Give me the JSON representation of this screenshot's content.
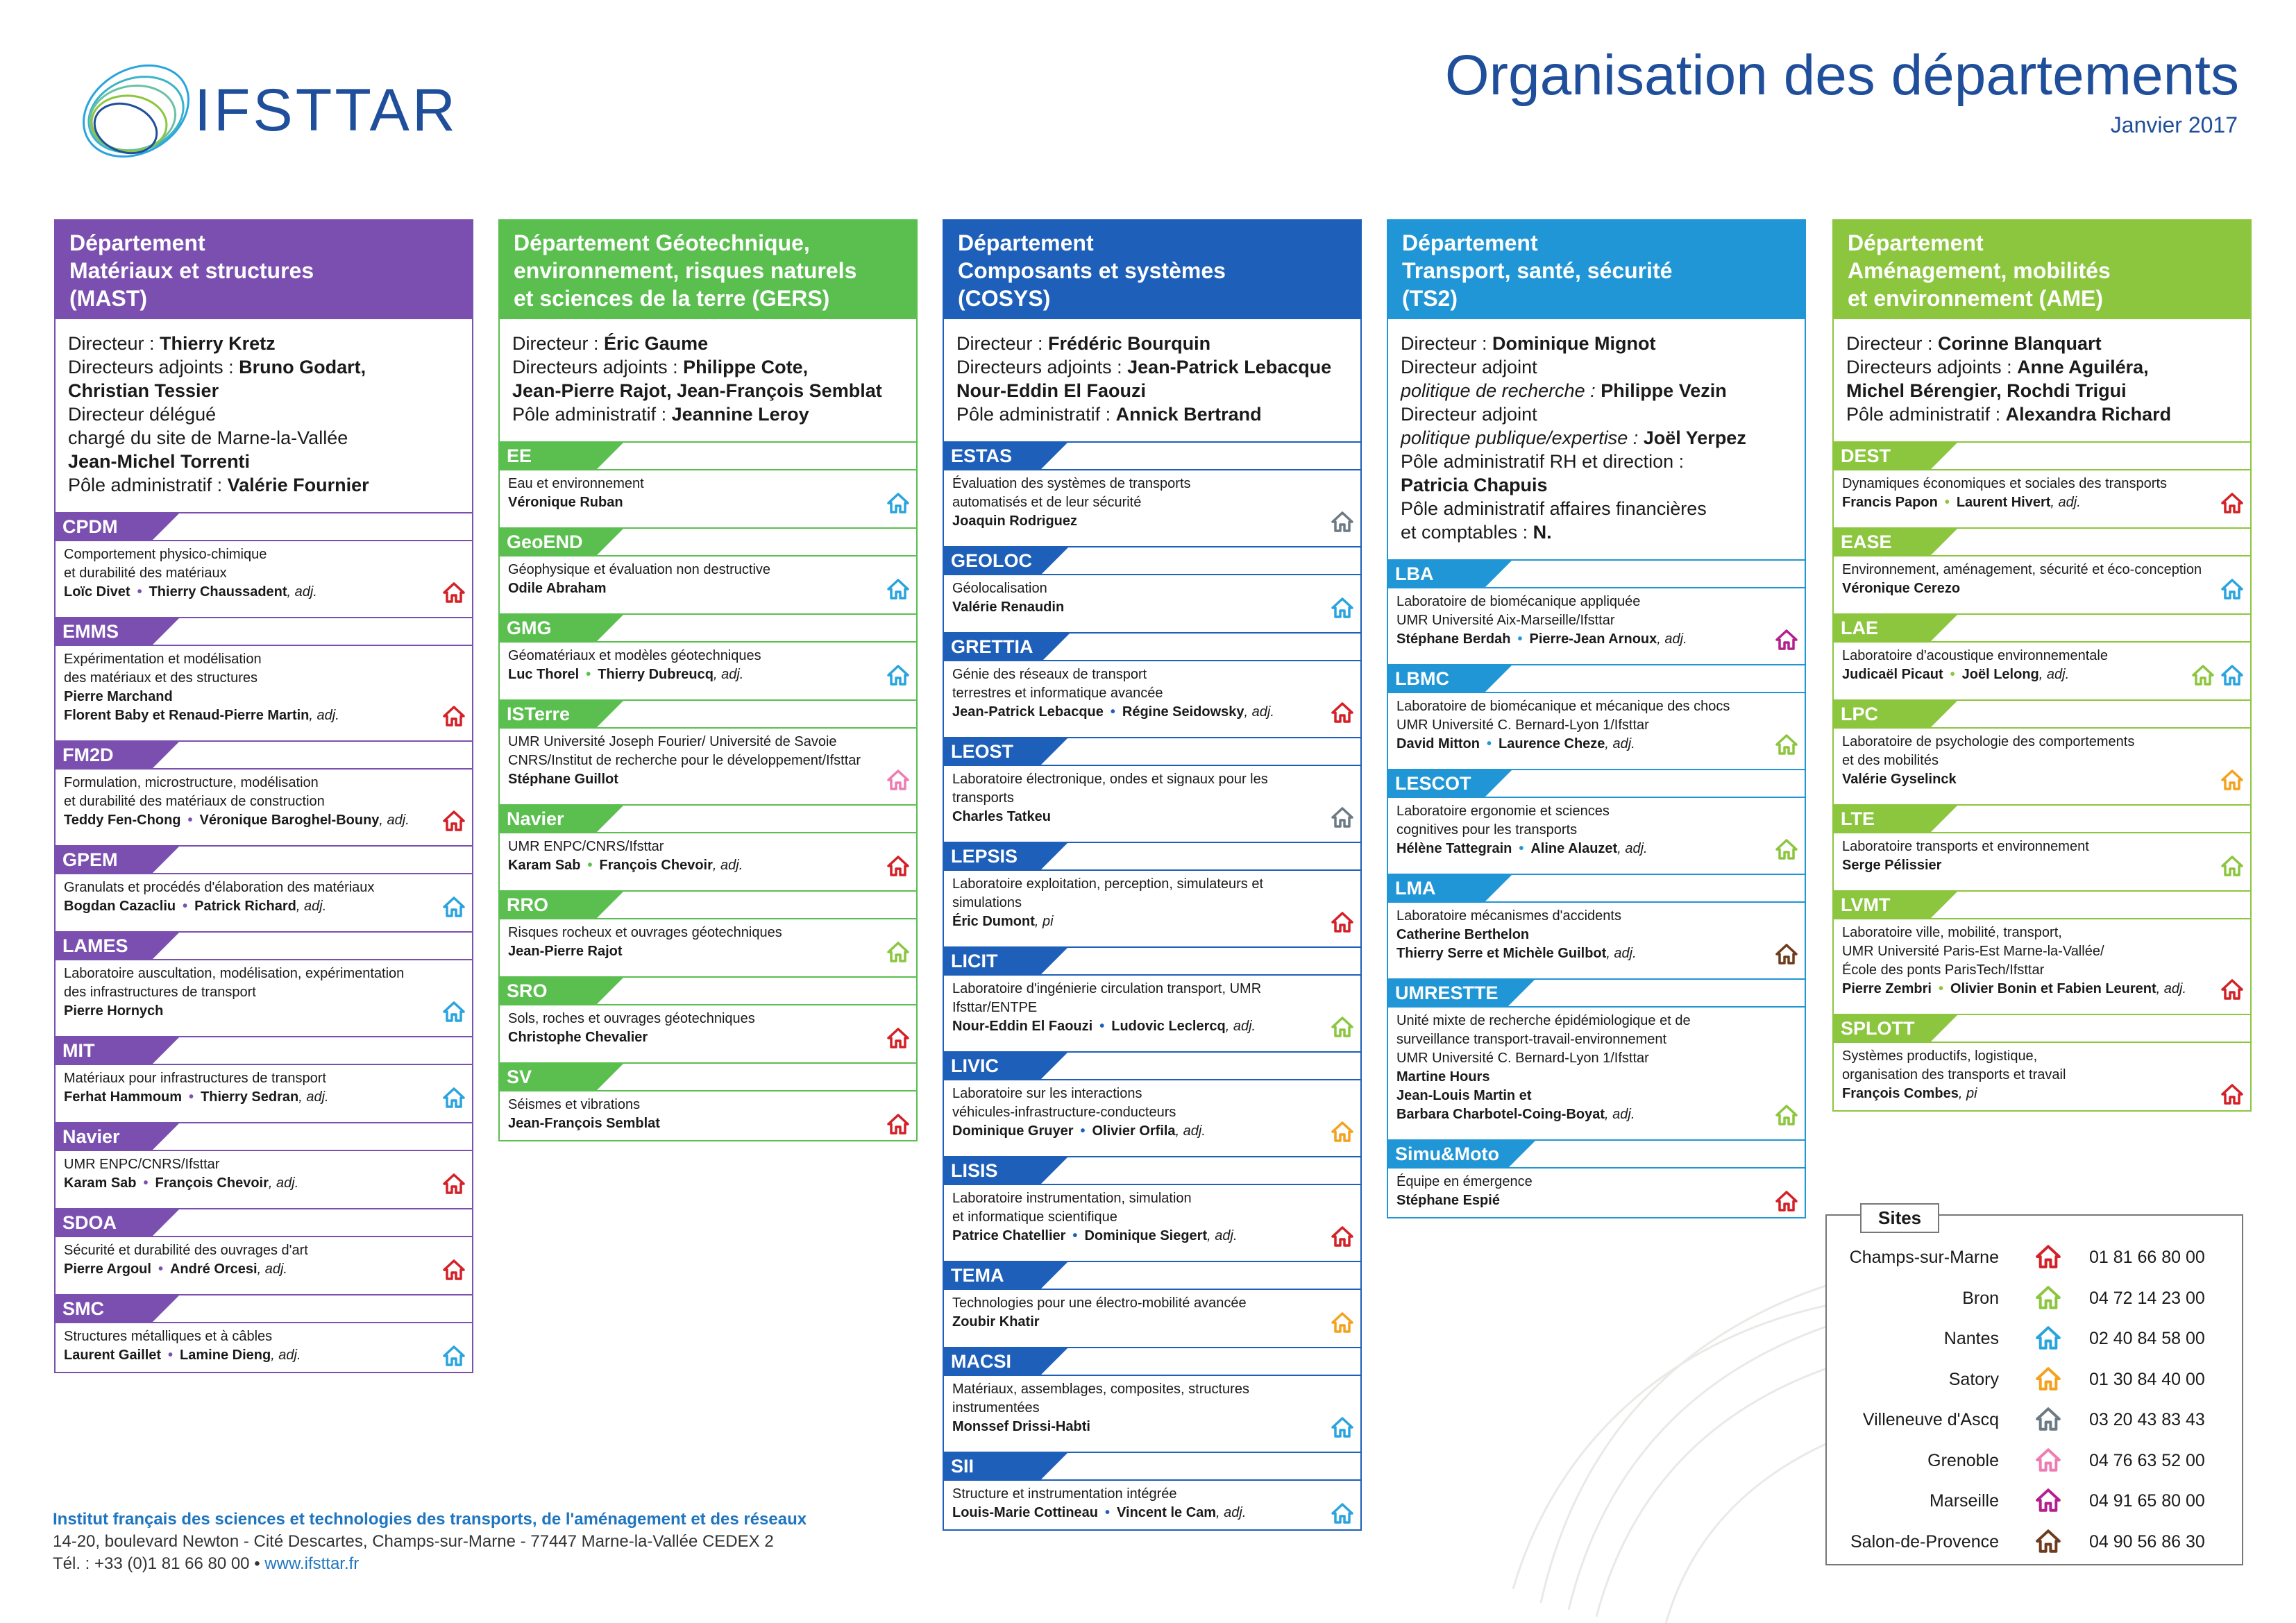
{
  "header": {
    "logo_text": "IFSTTAR",
    "title": "Organisation des départements",
    "date": "Janvier 2017"
  },
  "colors": {
    "mast": "#7b4fb0",
    "gers": "#5abf4f",
    "cosys": "#1d5fb9",
    "ts2": "#2196d6",
    "ame": "#8cc63f",
    "red": "#d42027",
    "green": "#8cc63f",
    "blue": "#2aa4de",
    "orange": "#f4a21e",
    "grey": "#6d7a83",
    "pink": "#ee7cb3",
    "magenta": "#b41f8f",
    "brown": "#6e3b1c"
  },
  "departments": [
    {
      "head": [
        "Département",
        "Matériaux et structures",
        "(MAST)"
      ],
      "dirs": [
        [
          "Directeur : ",
          "Thierry Kretz",
          ""
        ],
        [
          "Directeurs adjoints : ",
          "Bruno Godart,",
          ""
        ],
        [
          "",
          "Christian Tessier",
          ""
        ],
        [
          "Directeur délégué",
          "",
          ""
        ],
        [
          "chargé du site de Marne-la-Vallée",
          "",
          ""
        ],
        [
          "",
          "Jean-Michel Torrenti",
          ""
        ],
        [
          "Pôle administratif : ",
          "Valérie Fournier",
          ""
        ]
      ],
      "units": [
        {
          "name": "CPDM",
          "desc": [
            "Comportement physico-chimique",
            "et durabilité des matériaux"
          ],
          "people": [
            {
              "a": "Loïc Divet",
              "b": "Thierry Chaussadent",
              "adj": "adj."
            }
          ],
          "site": "red"
        },
        {
          "name": "EMMS",
          "desc": [
            "Expérimentation et modélisation",
            "des matériaux et des structures"
          ],
          "people": [
            {
              "a": "Pierre Marchand"
            },
            {
              "a": "Florent Baby et Renaud-Pierre Martin",
              "adj": "adj."
            }
          ],
          "site": "red"
        },
        {
          "name": "FM2D",
          "desc": [
            "Formulation, microstructure, modélisation",
            "et durabilité des matériaux de construction"
          ],
          "people": [
            {
              "a": "Teddy Fen-Chong",
              "b": "Véronique Baroghel-Bouny",
              "adj": "adj."
            }
          ],
          "site": "red"
        },
        {
          "name": "GPEM",
          "desc": [
            "Granulats et procédés d'élaboration des matériaux"
          ],
          "people": [
            {
              "a": "Bogdan Cazacliu",
              "b": "Patrick Richard",
              "adj": "adj."
            }
          ],
          "site": "blue"
        },
        {
          "name": "LAMES",
          "desc": [
            "Laboratoire auscultation, modélisation, expérimentation",
            "des infrastructures de transport"
          ],
          "people": [
            {
              "a": "Pierre Hornych"
            }
          ],
          "site": "blue"
        },
        {
          "name": "MIT",
          "desc": [
            "Matériaux pour infrastructures de transport"
          ],
          "people": [
            {
              "a": "Ferhat Hammoum",
              "b": "Thierry Sedran",
              "adj": "adj."
            }
          ],
          "site": "blue"
        },
        {
          "name": "Navier",
          "desc": [
            "UMR  ENPC/CNRS/Ifsttar"
          ],
          "people": [
            {
              "a": "Karam Sab",
              "b": "François Chevoir",
              "adj": "adj."
            }
          ],
          "site": "red"
        },
        {
          "name": "SDOA",
          "desc": [
            "Sécurité et durabilité des ouvrages d'art"
          ],
          "people": [
            {
              "a": "Pierre Argoul",
              "b": "André Orcesi",
              "adj": "adj."
            }
          ],
          "site": "red"
        },
        {
          "name": "SMC",
          "desc": [
            "Structures métalliques et à câbles"
          ],
          "people": [
            {
              "a": "Laurent Gaillet",
              "b": "Lamine Dieng",
              "adj": "adj."
            }
          ],
          "site": "blue"
        }
      ]
    },
    {
      "head": [
        "Département Géotechnique,",
        "environnement, risques naturels",
        "et sciences de la terre (GERS)"
      ],
      "dirs": [
        [
          "Directeur : ",
          "Éric Gaume",
          ""
        ],
        [
          "Directeurs adjoints : ",
          "Philippe Cote,",
          ""
        ],
        [
          "",
          "Jean-Pierre Rajot, Jean-François Semblat",
          ""
        ],
        [
          "Pôle administratif : ",
          "Jeannine Leroy",
          ""
        ]
      ],
      "units": [
        {
          "name": "EE",
          "desc": [
            "Eau et environnement"
          ],
          "people": [
            {
              "a": "Véronique Ruban"
            }
          ],
          "site": "blue"
        },
        {
          "name": "GeoEND",
          "desc": [
            "Géophysique et évaluation non destructive"
          ],
          "people": [
            {
              "a": "Odile Abraham"
            }
          ],
          "site": "blue"
        },
        {
          "name": "GMG",
          "desc": [
            "Géomatériaux et modèles géotechniques"
          ],
          "people": [
            {
              "a": "Luc Thorel",
              "b": "Thierry Dubreucq",
              "adj": "adj."
            }
          ],
          "site": "blue"
        },
        {
          "name": "ISTerre",
          "desc": [
            "UMR Université Joseph Fourier/ Université de Savoie",
            "CNRS/Institut de recherche pour le développement/Ifsttar"
          ],
          "people": [
            {
              "a": "Stéphane Guillot"
            }
          ],
          "site": "pink"
        },
        {
          "name": "Navier",
          "desc": [
            "UMR ENPC/CNRS/Ifsttar"
          ],
          "people": [
            {
              "a": "Karam Sab",
              "b": "François Chevoir",
              "adj": "adj."
            }
          ],
          "site": "red"
        },
        {
          "name": "RRO",
          "desc": [
            "Risques rocheux et ouvrages géotechniques"
          ],
          "people": [
            {
              "a": "Jean-Pierre Rajot"
            }
          ],
          "site": "green"
        },
        {
          "name": "SRO",
          "desc": [
            "Sols, roches et ouvrages géotechniques"
          ],
          "people": [
            {
              "a": "Christophe Chevalier"
            }
          ],
          "site": "red"
        },
        {
          "name": "SV",
          "desc": [
            "Séismes et vibrations"
          ],
          "people": [
            {
              "a": "Jean-François Semblat"
            }
          ],
          "site": "red"
        }
      ]
    },
    {
      "head": [
        "Département",
        "Composants et systèmes",
        "(COSYS)"
      ],
      "dirs": [
        [
          "Directeur : ",
          "Frédéric Bourquin",
          ""
        ],
        [
          "Directeurs adjoints : ",
          "Jean-Patrick Lebacque",
          ""
        ],
        [
          "",
          "Nour-Eddin El Faouzi",
          ""
        ],
        [
          "Pôle administratif : ",
          "Annick Bertrand",
          ""
        ]
      ],
      "units": [
        {
          "name": "ESTAS",
          "desc": [
            "Évaluation des systèmes de transports",
            "automatisés et de leur sécurité"
          ],
          "people": [
            {
              "a": "Joaquin Rodriguez"
            }
          ],
          "site": "grey"
        },
        {
          "name": "GEOLOC",
          "desc": [
            "Géolocalisation"
          ],
          "people": [
            {
              "a": "Valérie Renaudin"
            }
          ],
          "site": "blue"
        },
        {
          "name": "GRETTIA",
          "desc": [
            "Génie des réseaux de transport",
            "terrestres et informatique avancée"
          ],
          "people": [
            {
              "a": "Jean-Patrick Lebacque",
              "b": "Régine Seidowsky",
              "adj": "adj."
            }
          ],
          "site": "red"
        },
        {
          "name": "LEOST",
          "desc": [
            "Laboratoire électronique, ondes et signaux pour les transports"
          ],
          "people": [
            {
              "a": "Charles Tatkeu"
            }
          ],
          "site": "grey"
        },
        {
          "name": "LEPSIS",
          "desc": [
            "Laboratoire exploitation, perception, simulateurs et simulations"
          ],
          "people": [
            {
              "a": "Éric Dumont",
              "adj": "pi"
            }
          ],
          "site": "red"
        },
        {
          "name": "LICIT",
          "desc": [
            "Laboratoire d'ingénierie circulation transport, UMR Ifsttar/ENTPE"
          ],
          "people": [
            {
              "a": "Nour-Eddin El Faouzi",
              "b": "Ludovic Leclercq",
              "adj": "adj."
            }
          ],
          "site": "green"
        },
        {
          "name": "LIVIC",
          "desc": [
            "Laboratoire sur les interactions",
            "véhicules-infrastructure-conducteurs"
          ],
          "people": [
            {
              "a": "Dominique Gruyer",
              "b": "Olivier Orfila",
              "adj": "adj."
            }
          ],
          "site": "orange"
        },
        {
          "name": "LISIS",
          "desc": [
            "Laboratoire instrumentation, simulation",
            "et informatique scientifique"
          ],
          "people": [
            {
              "a": "Patrice Chatellier",
              "b": "Dominique Siegert",
              "adj": "adj."
            }
          ],
          "site": "red"
        },
        {
          "name": "TEMA",
          "desc": [
            "Technologies pour une électro-mobilité avancée"
          ],
          "people": [
            {
              "a": "Zoubir Khatir"
            }
          ],
          "site": "orange"
        },
        {
          "name": "MACSI",
          "desc": [
            "Matériaux, assemblages, composites, structures instrumentées"
          ],
          "people": [
            {
              "a": "Monssef Drissi-Habti"
            }
          ],
          "site": "blue"
        },
        {
          "name": "SII",
          "desc": [
            "Structure et instrumentation intégrée"
          ],
          "people": [
            {
              "a": "Louis-Marie Cottineau",
              "b": "Vincent le Cam",
              "adj": "adj."
            }
          ],
          "site": "blue"
        }
      ]
    },
    {
      "head": [
        "Département",
        "Transport, santé, sécurité",
        "(TS2)"
      ],
      "dirs": [
        [
          "Directeur : ",
          "Dominique Mignot",
          ""
        ],
        [
          "Directeur adjoint",
          "",
          ""
        ],
        [
          "",
          "Philippe Vezin",
          "politique de recherche : "
        ],
        [
          "Directeur adjoint",
          "",
          ""
        ],
        [
          "",
          "Joël Yerpez",
          "politique publique/expertise : "
        ],
        [
          "Pôle administratif RH et direction :",
          "",
          ""
        ],
        [
          "",
          "Patricia Chapuis",
          ""
        ],
        [
          "Pôle administratif affaires financières",
          "",
          ""
        ],
        [
          "et comptables : ",
          "N.",
          ""
        ]
      ],
      "units": [
        {
          "name": "LBA",
          "desc": [
            "Laboratoire de biomécanique appliquée",
            "UMR Université Aix-Marseille/Ifsttar"
          ],
          "people": [
            {
              "a": "Stéphane Berdah",
              "b": "Pierre-Jean Arnoux",
              "adj": "adj."
            }
          ],
          "site": "magenta"
        },
        {
          "name": "LBMC",
          "desc": [
            "Laboratoire de biomécanique et mécanique des chocs",
            "UMR Université C. Bernard-Lyon 1/Ifsttar"
          ],
          "people": [
            {
              "a": "David Mitton",
              "b": "Laurence Cheze",
              "adj": "adj."
            }
          ],
          "site": "green"
        },
        {
          "name": "LESCOT",
          "desc": [
            "Laboratoire ergonomie et sciences",
            "cognitives pour les transports"
          ],
          "people": [
            {
              "a": "Hélène Tattegrain",
              "b": "Aline Alauzet",
              "adj": "adj."
            }
          ],
          "site": "green"
        },
        {
          "name": "LMA",
          "desc": [
            "Laboratoire mécanismes d'accidents"
          ],
          "people": [
            {
              "a": "Catherine Berthelon"
            },
            {
              "a": "Thierry Serre et Michèle Guilbot",
              "adj": "adj."
            }
          ],
          "site": "brown"
        },
        {
          "name": "UMRESTTE",
          "desc": [
            "Unité mixte de recherche épidémiologique et de",
            "surveillance transport-travail-environnement",
            "UMR Université C. Bernard-Lyon 1/Ifsttar"
          ],
          "people": [
            {
              "a": "Martine Hours"
            },
            {
              "a": "Jean-Louis Martin et"
            },
            {
              "a": "Barbara Charbotel-Coing-Boyat",
              "adj": "adj."
            }
          ],
          "site": "green"
        },
        {
          "name": "Simu&Moto",
          "desc": [
            "Équipe en émergence"
          ],
          "people": [
            {
              "a": "Stéphane Espié"
            }
          ],
          "site": "red"
        }
      ]
    },
    {
      "head": [
        "Département",
        "Aménagement, mobilités",
        "et environnement (AME)"
      ],
      "dirs": [
        [
          "Directeur : ",
          "Corinne Blanquart",
          ""
        ],
        [
          "Directeurs adjoints : ",
          "Anne Aguiléra,",
          ""
        ],
        [
          "",
          "Michel Bérengier, Rochdi Trigui",
          ""
        ],
        [
          "Pôle administratif : ",
          "Alexandra Richard",
          ""
        ]
      ],
      "units": [
        {
          "name": "DEST",
          "desc": [
            "Dynamiques économiques et sociales des transports"
          ],
          "people": [
            {
              "a": "Francis Papon",
              "b": "Laurent Hivert",
              "adj": "adj."
            }
          ],
          "site": "red"
        },
        {
          "name": "EASE",
          "desc": [
            "Environnement, aménagement, sécurité et éco-conception"
          ],
          "people": [
            {
              "a": "Véronique Cerezo"
            }
          ],
          "site": "blue"
        },
        {
          "name": "LAE",
          "desc": [
            "Laboratoire d'acoustique environnementale"
          ],
          "people": [
            {
              "a": "Judicaël Picaut",
              "b": "Joël Lelong",
              "adj": "adj."
            }
          ],
          "site": "blue",
          "site2": "green"
        },
        {
          "name": "LPC",
          "desc": [
            "Laboratoire de psychologie des comportements",
            "et des mobilités"
          ],
          "people": [
            {
              "a": "Valérie Gyselinck"
            }
          ],
          "site": "orange"
        },
        {
          "name": "LTE",
          "desc": [
            "Laboratoire transports et environnement"
          ],
          "people": [
            {
              "a": "Serge Pélissier"
            }
          ],
          "site": "green"
        },
        {
          "name": "LVMT",
          "desc": [
            "Laboratoire ville, mobilité, transport,",
            "UMR Université Paris-Est Marne-la-Vallée/",
            "École des ponts ParisTech/Ifsttar"
          ],
          "people": [
            {
              "a": "Pierre Zembri",
              "b": "Olivier Bonin et Fabien Leurent",
              "adj": "adj."
            }
          ],
          "site": "red"
        },
        {
          "name": "SPLOTT",
          "desc": [
            "Systèmes productifs, logistique,",
            "organisation des transports et travail"
          ],
          "people": [
            {
              "a": "François Combes",
              "adj": "pi"
            }
          ],
          "site": "red"
        }
      ]
    }
  ],
  "sites": {
    "title": "Sites",
    "rows": [
      {
        "name": "Champs-sur-Marne",
        "color": "red",
        "phone": "01 81 66 80 00"
      },
      {
        "name": "Bron",
        "color": "green",
        "phone": "04 72 14 23 00"
      },
      {
        "name": "Nantes",
        "color": "blue",
        "phone": "02 40 84 58 00"
      },
      {
        "name": "Satory",
        "color": "orange",
        "phone": "01 30 84 40 00"
      },
      {
        "name": "Villeneuve d'Ascq",
        "color": "grey",
        "phone": "03 20 43 83 43"
      },
      {
        "name": "Grenoble",
        "color": "pink",
        "phone": "04 76 63 52 00"
      },
      {
        "name": "Marseille",
        "color": "magenta",
        "phone": "04 91 65 80 00"
      },
      {
        "name": "Salon-de-Provence",
        "color": "brown",
        "phone": "04 90 56 86 30"
      }
    ]
  },
  "footer": {
    "line1": "Institut français des sciences et technologies des transports, de l'aménagement et des réseaux",
    "line2": "14-20, boulevard Newton - Cité Descartes, Champs-sur-Marne - 77447 Marne-la-Vallée CEDEX 2",
    "tel": "Tél. : +33 (0)1 81 66 80 00",
    "sep": "•",
    "web": "www.ifsttar.fr"
  }
}
